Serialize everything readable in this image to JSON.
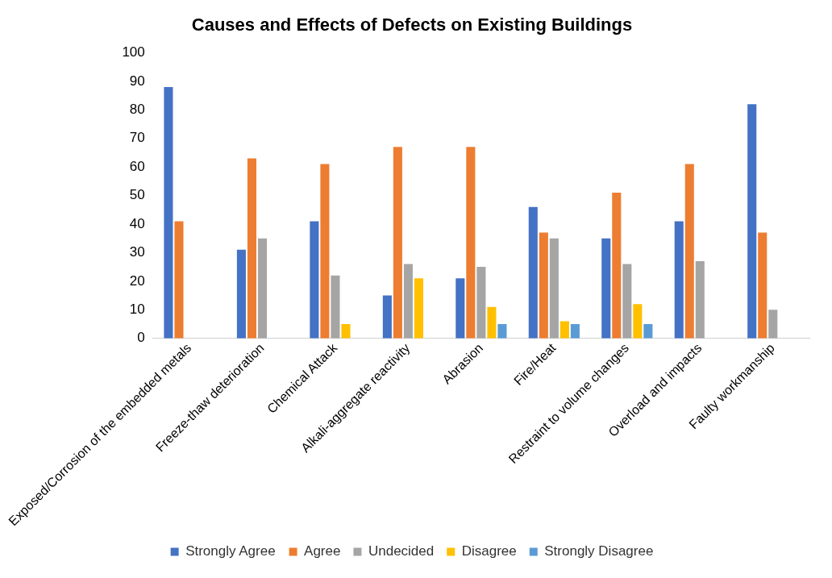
{
  "chart_data": {
    "type": "bar",
    "title": "Causes and Effects of Defects on Existing Buildings",
    "categories": [
      "Exposed/Corrosion of the embedded metals",
      "Freeze-thaw deterioration",
      "Chemical Attack",
      "Alkali-aggregate reactivity",
      "Abrasion",
      "Fire/Heat",
      "Restraint to volume changes",
      "Overload and impacts",
      "Faulty workmanship"
    ],
    "series": [
      {
        "name": "Strongly Agree",
        "color": "#4472c4",
        "values": [
          88,
          31,
          41,
          15,
          21,
          46,
          35,
          41,
          82
        ]
      },
      {
        "name": "Agree",
        "color": "#ed7d31",
        "values": [
          41,
          63,
          61,
          67,
          67,
          37,
          51,
          61,
          37
        ]
      },
      {
        "name": "Undecided",
        "color": "#a5a5a5",
        "values": [
          null,
          35,
          22,
          26,
          25,
          35,
          26,
          27,
          10
        ]
      },
      {
        "name": "Disagree",
        "color": "#ffc000",
        "values": [
          null,
          null,
          5,
          21,
          11,
          6,
          12,
          null,
          null
        ]
      },
      {
        "name": "Strongly Disagree",
        "color": "#5b9bd5",
        "values": [
          null,
          null,
          null,
          null,
          5,
          5,
          5,
          null,
          null
        ]
      }
    ],
    "ylim": [
      0,
      100
    ],
    "yticks": [
      0,
      10,
      20,
      30,
      40,
      50,
      60,
      70,
      80,
      90,
      100
    ],
    "grid": false,
    "legend": "bottom"
  }
}
